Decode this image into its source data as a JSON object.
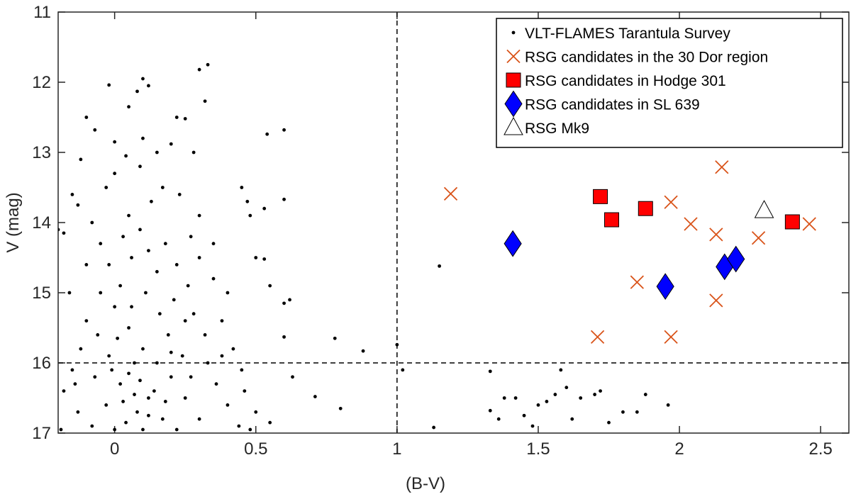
{
  "chart_data": {
    "type": "scatter",
    "xlabel": "(B-V)",
    "ylabel": "V (mag)",
    "xlim": [
      -0.2,
      2.6
    ],
    "ylim": [
      17,
      11
    ],
    "xticks": [
      0,
      0.5,
      1,
      1.5,
      2,
      2.5
    ],
    "yticks": [
      11,
      12,
      13,
      14,
      15,
      16,
      17
    ],
    "y_inverted": true,
    "vlines": [
      1
    ],
    "hlines": [
      16
    ],
    "legend": "upper right",
    "series": [
      {
        "name": "VLT-FLAMES Tarantula Survey",
        "marker": "dot",
        "color": "#000000",
        "x": [
          0.3,
          0.33,
          0.32,
          0.1,
          0.12,
          0.08,
          -0.02,
          -0.1,
          -0.07,
          0.05,
          0.22,
          0.25,
          0.0,
          0.1,
          0.2,
          0.28,
          -0.12,
          -0.2,
          -0.18,
          -0.15,
          -0.13,
          0.54,
          0.6,
          0.6,
          0.45,
          0.47,
          0.48,
          0.53,
          0.5,
          0.53,
          0.55,
          0.6,
          0.62,
          0.6,
          0.63,
          0.71,
          0.78,
          0.8,
          0.88,
          1.0,
          1.02,
          1.15,
          1.13,
          1.33,
          1.38,
          1.33,
          1.36,
          1.42,
          1.45,
          1.5,
          1.48,
          1.53,
          1.56,
          1.58,
          1.6,
          1.62,
          1.65,
          1.7,
          1.72,
          1.75,
          1.8,
          1.85,
          1.88,
          1.96,
          -0.08,
          -0.05,
          -0.02,
          0.03,
          0.06,
          0.09,
          0.12,
          0.15,
          0.18,
          0.22,
          0.26,
          0.3,
          0.35,
          0.4,
          0.28,
          0.32,
          0.38,
          0.42,
          0.45,
          0.36,
          0.4,
          0.44,
          0.3,
          0.25,
          0.2,
          0.15,
          0.1,
          0.05,
          0.0,
          -0.05,
          -0.1,
          -0.12,
          -0.15,
          -0.18,
          -0.13,
          -0.08,
          -0.03,
          0.02,
          0.07,
          0.12,
          0.17,
          0.22,
          0.27,
          0.33,
          0.08,
          0.04,
          0.0,
          0.1,
          0.14,
          0.19,
          0.24,
          -0.02,
          -0.07,
          0.06,
          0.11,
          0.16,
          0.21,
          0.02,
          -0.1,
          -0.16,
          0.13,
          0.17,
          0.23,
          0.05,
          -0.03,
          0.0,
          0.09,
          0.15,
          0.04,
          0.3,
          0.27,
          0.35,
          0.38,
          0.46,
          0.5,
          0.48,
          0.55,
          -0.19,
          -0.14,
          0.03,
          0.09,
          0.18,
          0.07,
          0.12,
          -0.01,
          0.05,
          0.2,
          0.25,
          0.01,
          -0.06
        ],
        "values": [
          11.82,
          11.75,
          12.27,
          11.95,
          12.05,
          12.13,
          12.04,
          12.5,
          12.68,
          12.35,
          12.5,
          12.52,
          12.85,
          12.8,
          12.88,
          13.0,
          13.1,
          14.1,
          14.15,
          13.6,
          13.75,
          12.74,
          12.68,
          13.67,
          13.5,
          13.7,
          13.9,
          13.8,
          14.5,
          14.52,
          14.9,
          15.15,
          15.1,
          15.63,
          16.2,
          16.48,
          15.65,
          16.65,
          15.83,
          15.74,
          16.1,
          14.62,
          16.92,
          16.12,
          16.5,
          16.68,
          16.8,
          16.5,
          16.75,
          16.6,
          16.9,
          16.55,
          16.45,
          16.1,
          16.35,
          16.8,
          16.5,
          16.45,
          16.4,
          16.85,
          16.7,
          16.7,
          16.45,
          16.6,
          14.0,
          14.3,
          14.6,
          14.2,
          14.5,
          14.1,
          14.4,
          14.7,
          14.3,
          14.6,
          14.9,
          14.5,
          14.8,
          15.0,
          15.3,
          15.6,
          15.4,
          15.8,
          16.1,
          16.3,
          16.6,
          16.9,
          16.8,
          16.5,
          16.2,
          16.0,
          15.8,
          15.5,
          15.2,
          15.0,
          15.4,
          15.8,
          16.1,
          16.4,
          16.7,
          16.9,
          16.6,
          16.3,
          16.0,
          16.5,
          16.8,
          16.95,
          16.2,
          16.0,
          16.7,
          16.85,
          16.95,
          16.95,
          16.4,
          15.6,
          15.9,
          15.9,
          16.2,
          15.2,
          15.0,
          15.3,
          15.1,
          14.9,
          14.6,
          15.0,
          13.7,
          13.5,
          13.6,
          13.9,
          13.5,
          13.3,
          13.2,
          13.0,
          13.05,
          13.9,
          14.2,
          14.3,
          15.9,
          16.4,
          16.7,
          16.95,
          16.85,
          16.95,
          16.3,
          16.55,
          16.25,
          16.55,
          16.45,
          16.75,
          16.1,
          16.15,
          15.85,
          15.4,
          15.65,
          15.6
        ]
      },
      {
        "name": "RSG candidates in the 30 Dor region",
        "marker": "x",
        "color": "#d95319",
        "x": [
          1.19,
          1.71,
          1.85,
          1.97,
          1.97,
          2.04,
          2.13,
          2.13,
          2.15,
          2.28,
          2.46
        ],
        "values": [
          13.59,
          15.63,
          14.85,
          13.71,
          15.63,
          14.02,
          14.17,
          15.11,
          13.21,
          14.22,
          14.02
        ]
      },
      {
        "name": "RSG candidates in Hodge 301",
        "marker": "square",
        "color": "#ff0000",
        "x": [
          1.72,
          1.76,
          1.88,
          2.4
        ],
        "values": [
          13.63,
          13.96,
          13.8,
          13.99
        ]
      },
      {
        "name": "RSG candidates in SL 639",
        "marker": "diamond",
        "color": "#0000ff",
        "x": [
          1.41,
          1.95,
          2.16,
          2.2
        ],
        "values": [
          14.3,
          14.91,
          14.63,
          14.52
        ]
      },
      {
        "name": "RSG Mk9",
        "marker": "triangle",
        "color": "#ffffff",
        "x": [
          2.3
        ],
        "values": [
          13.83
        ]
      }
    ]
  }
}
